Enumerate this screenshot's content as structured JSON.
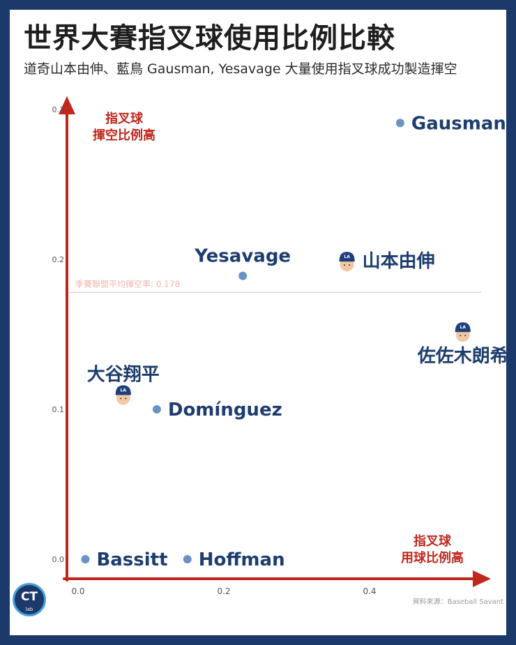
{
  "header": {
    "title": "世界大賽指叉球使用比例比較",
    "subtitle": "道奇山本由伸、藍鳥 Gausman, Yesavage 大量使用指叉球成功製造揮空"
  },
  "footer": {
    "logo_text": "CT",
    "logo_subtext": "lab",
    "source": "資料來源：Baseball Savant"
  },
  "colors": {
    "axis": "#c0261c",
    "point": "#6a93c2",
    "label": "#1d3d6e",
    "reference": "#f2b7ae",
    "cap": "#1f3f7f"
  },
  "chart_data": {
    "type": "scatter",
    "xlim": [
      0,
      0.55
    ],
    "ylim": [
      0,
      0.3
    ],
    "x_ticks": [
      {
        "value": 0.0,
        "label": "0.0"
      },
      {
        "value": 0.2,
        "label": "0.2"
      },
      {
        "value": 0.4,
        "label": "0.4"
      }
    ],
    "y_ticks": [
      {
        "value": 0.0,
        "label": "0.0"
      },
      {
        "value": 0.1,
        "label": "0.1"
      },
      {
        "value": 0.2,
        "label": "0.2"
      },
      {
        "value": 0.3,
        "label": "0.3"
      }
    ],
    "xlabel": [
      "指叉球",
      "用球比例高"
    ],
    "ylabel": [
      "指叉球",
      "揮空比例高"
    ],
    "reference_line": {
      "value": 0.178,
      "label": "季賽聯盟平均揮空率: 0.178"
    },
    "points": [
      {
        "name": "Gausman",
        "x": 0.442,
        "y": 0.291,
        "marker": "dot",
        "label_pos": "right"
      },
      {
        "name": "山本由伸",
        "x": 0.369,
        "y": 0.199,
        "marker": "face",
        "label_pos": "right"
      },
      {
        "name": "Yesavage",
        "x": 0.226,
        "y": 0.189,
        "marker": "dot",
        "label_pos": "above"
      },
      {
        "name": "佐佐木朗希",
        "x": 0.528,
        "y": 0.152,
        "marker": "face",
        "label_pos": "below"
      },
      {
        "name": "大谷翔平",
        "x": 0.062,
        "y": 0.11,
        "marker": "face",
        "label_pos": "above"
      },
      {
        "name": "Domínguez",
        "x": 0.108,
        "y": 0.1,
        "marker": "dot",
        "label_pos": "right"
      },
      {
        "name": "Bassitt",
        "x": 0.01,
        "y": 0.0,
        "marker": "dot",
        "label_pos": "right"
      },
      {
        "name": "Hoffman",
        "x": 0.15,
        "y": 0.0,
        "marker": "dot",
        "label_pos": "right"
      }
    ]
  }
}
